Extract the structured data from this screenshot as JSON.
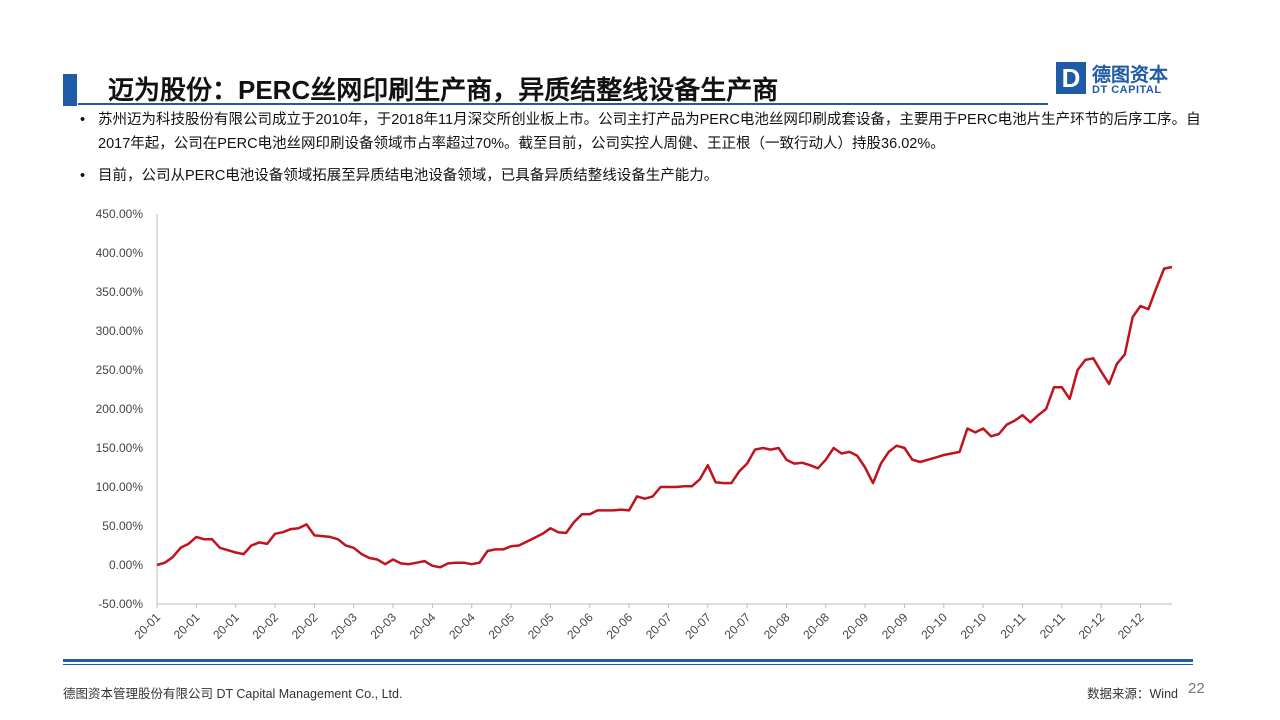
{
  "header": {
    "title": "迈为股份：PERC丝网印刷生产商，异质结整线设备生产商",
    "logo_cn": "德图资本",
    "logo_en": "DT CAPITAL"
  },
  "bullets": [
    "苏州迈为科技股份有限公司成立于2010年，于2018年11月深交所创业板上市。公司主打产品为PERC电池丝网印刷成套设备，主要用于PERC电池片生产环节的后序工序。自2017年起，公司在PERC电池丝网印刷设备领域市占率超过70%。截至目前，公司实控人周健、王正根（一致行动人）持股36.02%。",
    "目前，公司从PERC电池设备领域拓展至异质结电池设备领域，已具备异质结整线设备生产能力。"
  ],
  "chart_data": {
    "type": "line",
    "color": "#c0141c",
    "categories": [
      "20-01",
      null,
      null,
      null,
      null,
      "20-01",
      null,
      null,
      null,
      null,
      "20-01",
      null,
      null,
      null,
      null,
      "20-02",
      null,
      null,
      null,
      null,
      "20-02",
      null,
      null,
      null,
      null,
      "20-03",
      null,
      null,
      null,
      null,
      "20-03",
      null,
      null,
      null,
      null,
      "20-04",
      null,
      null,
      null,
      null,
      "20-04",
      null,
      null,
      null,
      null,
      "20-05",
      null,
      null,
      null,
      null,
      "20-05",
      null,
      null,
      null,
      null,
      "20-06",
      null,
      null,
      null,
      null,
      "20-06",
      null,
      null,
      null,
      null,
      "20-07",
      null,
      null,
      null,
      null,
      "20-07",
      null,
      null,
      null,
      null,
      "20-07",
      null,
      null,
      null,
      null,
      "20-08",
      null,
      null,
      null,
      null,
      "20-08",
      null,
      null,
      null,
      null,
      "20-09",
      null,
      null,
      null,
      null,
      "20-09",
      null,
      null,
      null,
      null,
      "20-10",
      null,
      null,
      null,
      null,
      "20-10",
      null,
      null,
      null,
      null,
      "20-11",
      null,
      null,
      null,
      null,
      "20-11",
      null,
      null,
      null,
      null,
      "20-12",
      null,
      null,
      null,
      null,
      "20-12",
      null,
      null,
      null,
      null
    ],
    "values": [
      0,
      3,
      10,
      22,
      27,
      36,
      33,
      33,
      22,
      19,
      16,
      14,
      25,
      29,
      27,
      40,
      42,
      46,
      47,
      52,
      38,
      37,
      36,
      33,
      25,
      22,
      14,
      9,
      7,
      1,
      7,
      2,
      1,
      3,
      5,
      -1,
      -3,
      2,
      3,
      3,
      1,
      3,
      18,
      20,
      20,
      24,
      25,
      30,
      35,
      40,
      47,
      42,
      41,
      55,
      65,
      65,
      70,
      70,
      70,
      71,
      70,
      88,
      85,
      88,
      100,
      100,
      100,
      101,
      101,
      110,
      128,
      106,
      105,
      105,
      120,
      130,
      148,
      150,
      148,
      150,
      135,
      130,
      131,
      128,
      124,
      135,
      150,
      143,
      145,
      140,
      125,
      105,
      130,
      145,
      153,
      150,
      135,
      132,
      135,
      138,
      141,
      143,
      145,
      175,
      170,
      175,
      165,
      168,
      180,
      185,
      192,
      183,
      192,
      200,
      228,
      228,
      213,
      250,
      263,
      265,
      248,
      232,
      258,
      270,
      318,
      332,
      328,
      355,
      380,
      382
    ],
    "ylim": [
      -50,
      450
    ],
    "yticks": [
      {
        "value": -50,
        "label": "-50.00%"
      },
      {
        "value": 0,
        "label": "0.00%"
      },
      {
        "value": 50,
        "label": "50.00%"
      },
      {
        "value": 100,
        "label": "100.00%"
      },
      {
        "value": 150,
        "label": "150.00%"
      },
      {
        "value": 200,
        "label": "200.00%"
      },
      {
        "value": 250,
        "label": "250.00%"
      },
      {
        "value": 300,
        "label": "300.00%"
      },
      {
        "value": 350,
        "label": "350.00%"
      },
      {
        "value": 400,
        "label": "400.00%"
      },
      {
        "value": 450,
        "label": "450.00%"
      }
    ]
  },
  "footer": {
    "company": "德图资本管理股份有限公司  DT Capital Management  Co., Ltd.",
    "source": "数据来源：Wind",
    "page": "22"
  }
}
